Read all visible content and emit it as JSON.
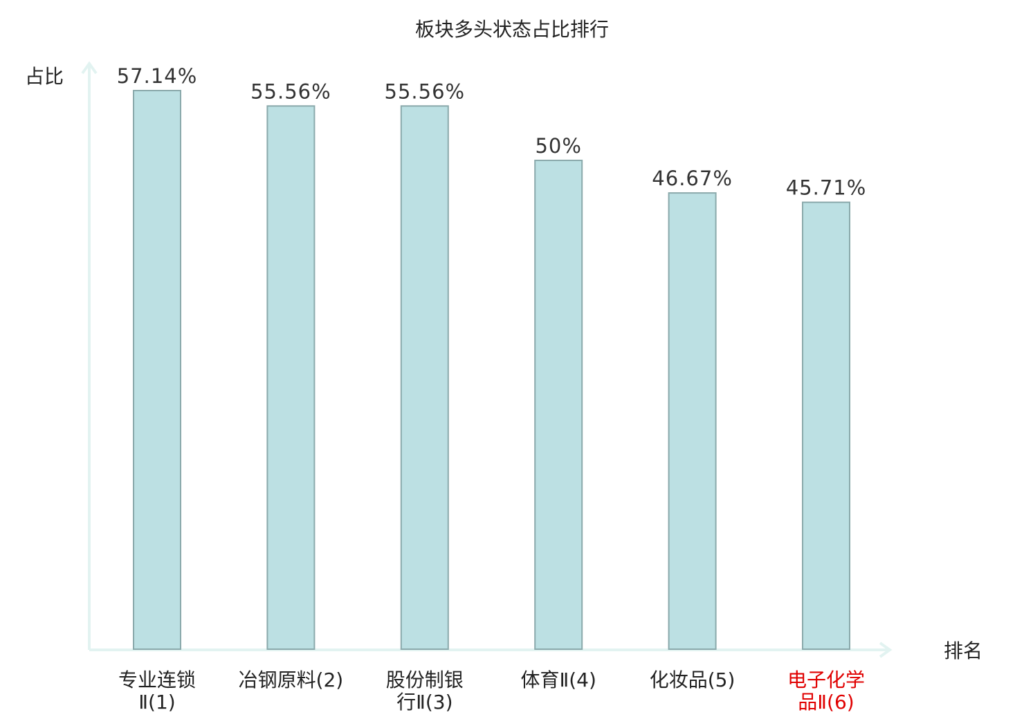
{
  "chart_data": {
    "type": "bar",
    "title": "板块多头状态占比排行",
    "ylabel": "占比",
    "xlabel": "排名",
    "ylim": [
      0,
      60
    ],
    "grid": false,
    "categories": [
      {
        "lines": [
          "专业连锁",
          "Ⅱ(1)"
        ],
        "highlight": false
      },
      {
        "lines": [
          "冶钢原料(2)"
        ],
        "highlight": false
      },
      {
        "lines": [
          "股份制银",
          "行Ⅱ(3)"
        ],
        "highlight": false
      },
      {
        "lines": [
          "体育Ⅱ(4)"
        ],
        "highlight": false
      },
      {
        "lines": [
          "化妆品(5)"
        ],
        "highlight": false
      },
      {
        "lines": [
          "电子化学",
          "品Ⅱ(6)"
        ],
        "highlight": true
      }
    ],
    "values": [
      57.14,
      55.56,
      55.56,
      50,
      46.67,
      45.71
    ],
    "value_labels": [
      "57.14%",
      "55.56%",
      "55.56%",
      "50%",
      "46.67%",
      "45.71%"
    ]
  },
  "colors": {
    "bar_fill": "#bce0e3",
    "bar_stroke": "#8aa9ab",
    "axis": "#e2f3f1",
    "highlight_text": "#e00000",
    "normal_text": "#222222"
  }
}
